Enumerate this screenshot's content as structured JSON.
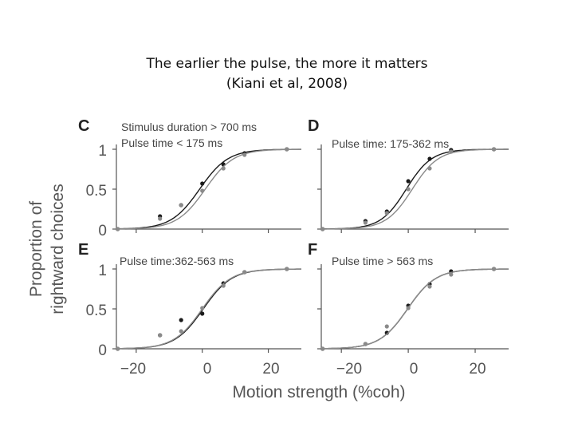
{
  "slide": {
    "title_line1": "The earlier the pulse, the more it matters",
    "title_line2": "(Kiani et al, 2008)"
  },
  "colors": {
    "dark_series": "#1a1a1a",
    "light_series": "#8a8a8a",
    "axis": "#555555",
    "text": "#444444"
  },
  "chart_data": {
    "type": "scatter",
    "shared": {
      "xlabel": "Motion strength (%coh)",
      "ylabel_line1": "Proportion of",
      "ylabel_line2": "rightward choices",
      "xlim": [
        -26,
        30
      ],
      "ylim": [
        0,
        1
      ],
      "x_ticks": [
        -20,
        0,
        20
      ],
      "x_tick_labels": [
        "−20",
        "0",
        "20"
      ],
      "y_ticks": [
        0,
        0.5,
        1
      ],
      "y_tick_labels": [
        "0",
        "0.5",
        "1"
      ],
      "x": [
        -25.6,
        -12.8,
        -6.4,
        0,
        6.4,
        12.8,
        25.6
      ],
      "series_names": [
        "dark",
        "light"
      ]
    },
    "panels": [
      {
        "label": "C",
        "annotations": [
          "Stimulus duration > 700 ms",
          "Pulse time < 175 ms"
        ],
        "series": [
          {
            "name": "dark",
            "values": [
              0.0,
              0.16,
              0.3,
              0.57,
              0.81,
              0.95,
              1.0
            ],
            "fit": {
              "mu": -0.8,
              "s": 4.3
            }
          },
          {
            "name": "light",
            "values": [
              0.0,
              0.13,
              0.3,
              0.48,
              0.76,
              0.93,
              1.0
            ],
            "fit": {
              "mu": 0.9,
              "s": 4.3
            }
          }
        ]
      },
      {
        "label": "D",
        "annotations": [
          "Pulse time: 175-362 ms"
        ],
        "series": [
          {
            "name": "dark",
            "values": [
              0.0,
              0.1,
              0.22,
              0.6,
              0.88,
              0.99,
              1.0
            ],
            "fit": {
              "mu": -0.6,
              "s": 3.8
            }
          },
          {
            "name": "light",
            "values": [
              0.0,
              0.08,
              0.2,
              0.5,
              0.76,
              0.97,
              1.0
            ],
            "fit": {
              "mu": 1.2,
              "s": 3.9
            }
          }
        ]
      },
      {
        "label": "E",
        "annotations": [
          "Pulse time:362-563 ms"
        ],
        "series": [
          {
            "name": "dark",
            "values": [
              0.0,
              0.17,
              0.36,
              0.44,
              0.82,
              0.96,
              1.0
            ],
            "fit": {
              "mu": 0.3,
              "s": 4.3
            }
          },
          {
            "name": "light",
            "values": [
              0.0,
              0.17,
              0.22,
              0.51,
              0.79,
              0.96,
              1.0
            ],
            "fit": {
              "mu": 0.0,
              "s": 4.3
            }
          }
        ]
      },
      {
        "label": "F",
        "annotations": [
          "Pulse time > 563 ms"
        ],
        "series": [
          {
            "name": "dark",
            "values": [
              0.0,
              0.06,
              0.2,
              0.54,
              0.81,
              0.97,
              1.0
            ],
            "fit": {
              "mu": -0.2,
              "s": 4.2
            }
          },
          {
            "name": "light",
            "values": [
              0.0,
              0.06,
              0.28,
              0.51,
              0.78,
              0.93,
              1.0
            ],
            "fit": {
              "mu": -0.2,
              "s": 4.2
            }
          }
        ]
      }
    ]
  }
}
